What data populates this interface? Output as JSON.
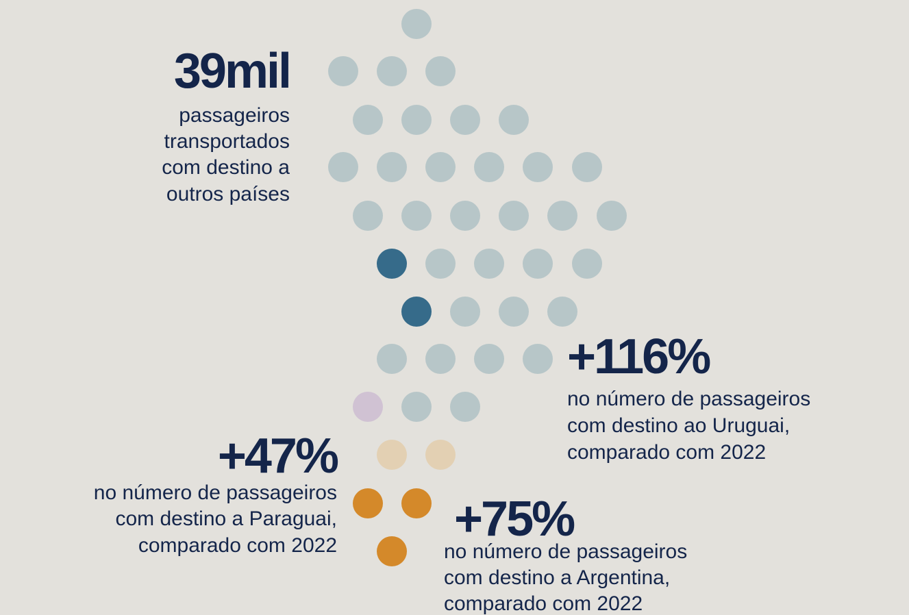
{
  "stats": [
    {
      "value": "39mil",
      "lines": [
        "passageiros",
        "transportados",
        "com destino a",
        "outros países"
      ]
    },
    {
      "value": "+116%",
      "lines": [
        "no número de passageiros",
        "com destino ao Uruguai,",
        "comparado com 2022"
      ]
    },
    {
      "value": "+47%",
      "lines": [
        "no número de passageiros",
        "com destino a Paraguai,",
        "comparado com 2022"
      ]
    },
    {
      "value": "+75%",
      "lines": [
        "no número de passageiros",
        "com destino a Argentina,",
        "comparado com 2022"
      ]
    }
  ]
}
